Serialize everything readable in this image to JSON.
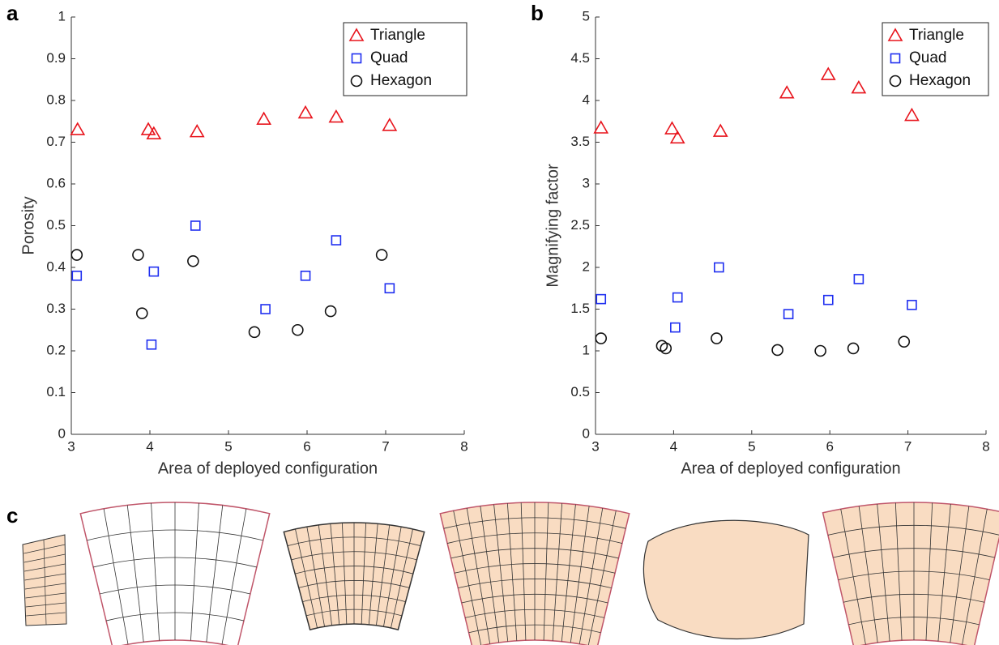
{
  "chart_data": [
    {
      "type": "scatter",
      "panel_label": "a",
      "xlabel": "Area of deployed configuration",
      "ylabel": "Porosity",
      "xlim": [
        3,
        8
      ],
      "xticks": [
        3,
        4,
        5,
        6,
        7,
        8
      ],
      "ylim": [
        0,
        1
      ],
      "yticks": [
        0,
        0.1,
        0.2,
        0.3,
        0.4,
        0.5,
        0.6,
        0.7,
        0.8,
        0.9,
        1
      ],
      "legend": "upper right",
      "series": [
        {
          "name": "Triangle",
          "color": "#e8141c",
          "marker": "triangle",
          "x": [
            3.08,
            3.98,
            4.05,
            4.6,
            5.45,
            5.98,
            6.37,
            7.05
          ],
          "values": [
            0.73,
            0.73,
            0.72,
            0.725,
            0.755,
            0.77,
            0.76,
            0.74
          ]
        },
        {
          "name": "Quad",
          "color": "#1f2ff0",
          "marker": "square",
          "x": [
            3.07,
            4.05,
            4.02,
            4.58,
            5.47,
            5.98,
            6.37,
            7.05
          ],
          "values": [
            0.38,
            0.39,
            0.215,
            0.5,
            0.3,
            0.38,
            0.465,
            0.35
          ]
        },
        {
          "name": "Hexagon",
          "color": "#111111",
          "marker": "circle",
          "x": [
            3.07,
            3.85,
            3.9,
            4.55,
            5.33,
            5.88,
            6.3,
            6.95
          ],
          "values": [
            0.43,
            0.43,
            0.29,
            0.415,
            0.245,
            0.25,
            0.295,
            0.43
          ]
        }
      ]
    },
    {
      "type": "scatter",
      "panel_label": "b",
      "xlabel": "Area of deployed configuration",
      "ylabel": "Magnifying factor",
      "xlim": [
        3,
        8
      ],
      "xticks": [
        3,
        4,
        5,
        6,
        7,
        8
      ],
      "ylim": [
        0,
        5
      ],
      "yticks": [
        0,
        0.5,
        1,
        1.5,
        2,
        2.5,
        3,
        3.5,
        4,
        4.5,
        5
      ],
      "legend": "upper right",
      "series": [
        {
          "name": "Triangle",
          "color": "#e8141c",
          "marker": "triangle",
          "x": [
            3.07,
            3.98,
            4.05,
            4.6,
            5.45,
            5.98,
            6.37,
            7.05
          ],
          "values": [
            3.67,
            3.66,
            3.55,
            3.63,
            4.09,
            4.31,
            4.15,
            3.82
          ]
        },
        {
          "name": "Quad",
          "color": "#1f2ff0",
          "marker": "square",
          "x": [
            3.07,
            4.05,
            4.02,
            4.58,
            5.47,
            5.98,
            6.37,
            7.05
          ],
          "values": [
            1.62,
            1.64,
            1.28,
            2.0,
            1.44,
            1.61,
            1.86,
            1.55
          ]
        },
        {
          "name": "Hexagon",
          "color": "#111111",
          "marker": "circle",
          "x": [
            3.07,
            3.85,
            3.9,
            4.55,
            5.33,
            5.88,
            6.3,
            6.95
          ],
          "values": [
            1.15,
            1.06,
            1.03,
            1.15,
            1.01,
            1.0,
            1.03,
            1.11
          ]
        }
      ]
    }
  ],
  "illustration": {
    "panel_label": "c"
  }
}
